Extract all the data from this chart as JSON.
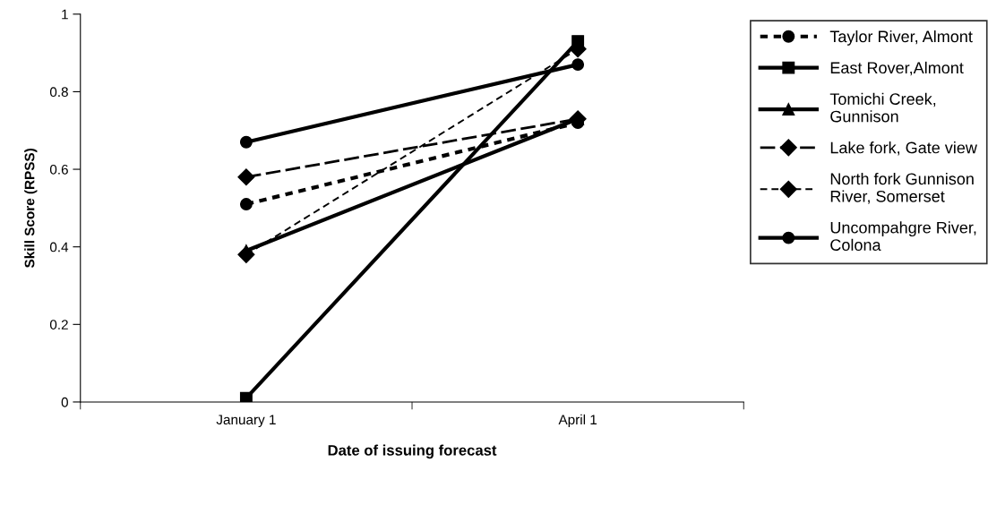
{
  "chart_data": {
    "type": "line",
    "xlabel": "Date of issuing forecast",
    "ylabel": "Skill Score (RPSS)",
    "categories": [
      "January 1",
      "April 1"
    ],
    "ylim": [
      0,
      1
    ],
    "yticks": [
      0,
      0.2,
      0.4,
      0.6,
      0.8,
      1
    ],
    "grid": false,
    "legend": "right",
    "series": [
      {
        "name": "Taylor River, Almont",
        "color": "#000000",
        "values": [
          0.51,
          0.72
        ],
        "marker": "circle",
        "line_style": "dashed"
      },
      {
        "name": "East Rover,Almont",
        "color": "#000000",
        "values": [
          0.01,
          0.93
        ],
        "marker": "square",
        "line_style": "solid"
      },
      {
        "name": "Tomichi Creek,\nGunnison",
        "color": "#000000",
        "values": [
          0.39,
          0.73
        ],
        "marker": "triangle",
        "line_style": "solid"
      },
      {
        "name": "Lake fork, Gate view",
        "color": "#000000",
        "values": [
          0.58,
          0.73
        ],
        "marker": "diamond",
        "line_style": "dashed"
      },
      {
        "name": "North fork Gunnison\nRiver, Somerset",
        "color": "#000000",
        "values": [
          0.38,
          0.91
        ],
        "marker": "diamond",
        "line_style": "dashed"
      },
      {
        "name": "Uncompahgre River,\nColona",
        "color": "#000000",
        "values": [
          0.67,
          0.87
        ],
        "marker": "circle",
        "line_style": "solid"
      }
    ]
  }
}
